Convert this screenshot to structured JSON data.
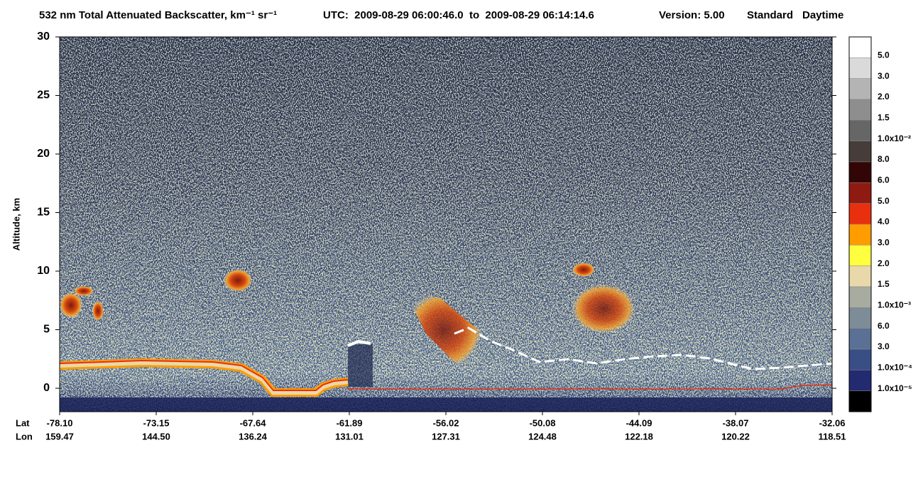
{
  "chart_data": {
    "type": "heatmap",
    "title": "532 nm Total Attenuated Backscatter, km⁻¹ sr⁻¹",
    "time_range": "UTC:  2009-08-29 06:00:46.0  to  2009-08-29 06:14:14.6",
    "version": "Version: 5.00",
    "product": "Standard",
    "mode": "Daytime",
    "ylabel": "Altitude, km",
    "ylim": [
      -2,
      30
    ],
    "yticks": [
      0,
      5,
      10,
      15,
      20,
      25,
      30
    ],
    "x_row_labels": [
      "Lat",
      "Lon"
    ],
    "lat": [
      "-78.10",
      "-73.15",
      "-67.64",
      "-61.89",
      "-56.02",
      "-50.08",
      "-44.09",
      "-38.07",
      "-32.06"
    ],
    "lon": [
      "159.47",
      "144.50",
      "136.24",
      "131.01",
      "127.31",
      "124.48",
      "122.18",
      "120.22",
      "118.51"
    ],
    "colorbar": {
      "colors": [
        "#ffffff",
        "#dadada",
        "#b4b4b4",
        "#8e8e8e",
        "#666666",
        "#463c3a",
        "#320606",
        "#8e1a12",
        "#e8300e",
        "#ff9c00",
        "#ffff40",
        "#e8d8aa",
        "#a8ab9f",
        "#7e8c98",
        "#5a7094",
        "#3a4e86",
        "#222a70",
        "#000000"
      ],
      "labels": [
        "5.0",
        "3.0",
        "2.0",
        "1.5",
        "1.0x10⁻²",
        "8.0",
        "6.0",
        "5.0",
        "4.0",
        "3.0",
        "2.0",
        "1.5",
        "1.0x10⁻³",
        "6.0",
        "3.0",
        "1.0x10⁻⁴",
        "1.0x10⁻⁵"
      ]
    }
  }
}
